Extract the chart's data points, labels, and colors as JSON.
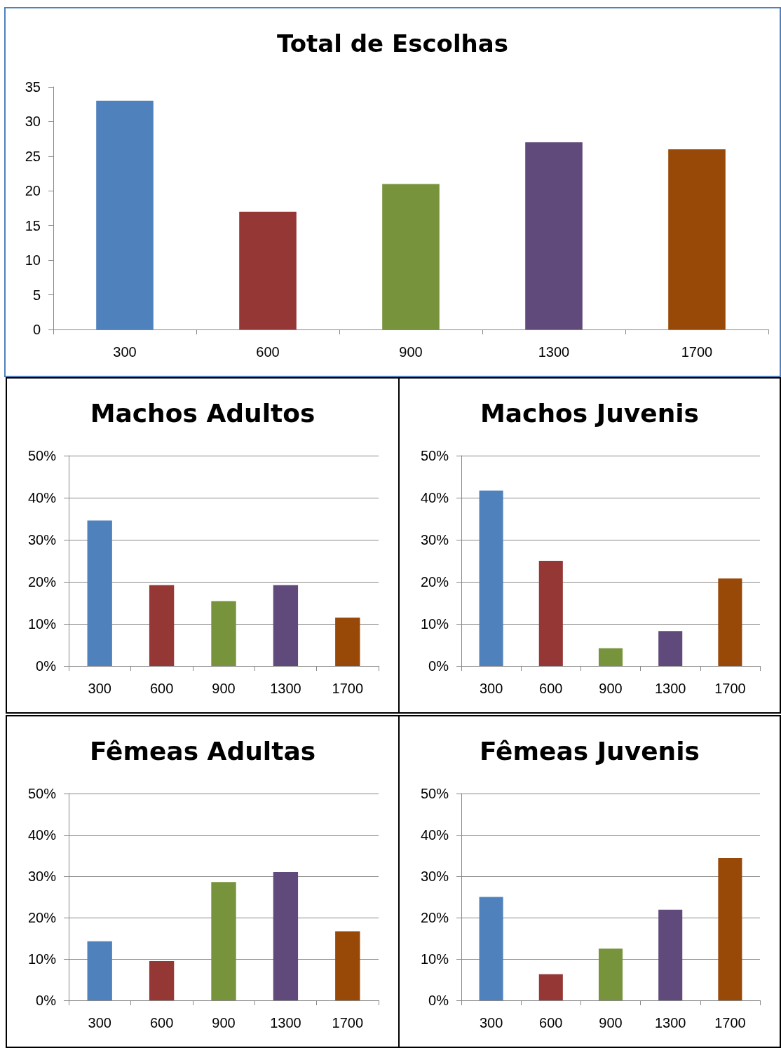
{
  "chart_data": [
    {
      "type": "bar",
      "title": "Total de Escolhas",
      "categories": [
        "300",
        "600",
        "900",
        "1300",
        "1700"
      ],
      "values": [
        33,
        17,
        21,
        27,
        26
      ],
      "colors": [
        "#4f81bd",
        "#953735",
        "#77933c",
        "#604a7b",
        "#984807"
      ],
      "ylim": [
        0,
        35
      ],
      "yticks": [
        0,
        5,
        10,
        15,
        20,
        25,
        30,
        35
      ],
      "grid": false
    },
    {
      "type": "bar",
      "title": "Machos Adultos",
      "categories": [
        "300",
        "600",
        "900",
        "1300",
        "1700"
      ],
      "values": [
        34.6,
        19.2,
        15.4,
        19.2,
        11.5
      ],
      "colors": [
        "#4f81bd",
        "#953735",
        "#77933c",
        "#604a7b",
        "#984807"
      ],
      "ylim": [
        0,
        50
      ],
      "yticks": [
        {
          "value": 0,
          "label": "0%"
        },
        {
          "value": 10,
          "label": "10%"
        },
        {
          "value": 20,
          "label": "20%"
        },
        {
          "value": 30,
          "label": "30%"
        },
        {
          "value": 40,
          "label": "40%"
        },
        {
          "value": 50,
          "label": "50%"
        }
      ],
      "grid": "y"
    },
    {
      "type": "bar",
      "title": "Machos Juvenis",
      "categories": [
        "300",
        "600",
        "900",
        "1300",
        "1700"
      ],
      "values": [
        41.7,
        25,
        4.2,
        8.3,
        20.8
      ],
      "colors": [
        "#4f81bd",
        "#953735",
        "#77933c",
        "#604a7b",
        "#984807"
      ],
      "ylim": [
        0,
        50
      ],
      "yticks": [
        {
          "value": 0,
          "label": "0%"
        },
        {
          "value": 10,
          "label": "10%"
        },
        {
          "value": 20,
          "label": "20%"
        },
        {
          "value": 30,
          "label": "30%"
        },
        {
          "value": 40,
          "label": "40%"
        },
        {
          "value": 50,
          "label": "50%"
        }
      ],
      "grid": "y"
    },
    {
      "type": "bar",
      "title": "Fêmeas Adultas",
      "categories": [
        "300",
        "600",
        "900",
        "1300",
        "1700"
      ],
      "values": [
        14.3,
        9.5,
        28.6,
        31,
        16.7
      ],
      "colors": [
        "#4f81bd",
        "#953735",
        "#77933c",
        "#604a7b",
        "#984807"
      ],
      "ylim": [
        0,
        50
      ],
      "yticks": [
        {
          "value": 0,
          "label": "0%"
        },
        {
          "value": 10,
          "label": "10%"
        },
        {
          "value": 20,
          "label": "20%"
        },
        {
          "value": 30,
          "label": "30%"
        },
        {
          "value": 40,
          "label": "40%"
        },
        {
          "value": 50,
          "label": "50%"
        }
      ],
      "grid": "y"
    },
    {
      "type": "bar",
      "title": "Fêmeas Juvenis",
      "categories": [
        "300",
        "600",
        "900",
        "1300",
        "1700"
      ],
      "values": [
        25,
        6.3,
        12.5,
        21.9,
        34.4
      ],
      "colors": [
        "#4f81bd",
        "#953735",
        "#77933c",
        "#604a7b",
        "#984807"
      ],
      "ylim": [
        0,
        50
      ],
      "yticks": [
        {
          "value": 0,
          "label": "0%"
        },
        {
          "value": 10,
          "label": "10%"
        },
        {
          "value": 20,
          "label": "20%"
        },
        {
          "value": 30,
          "label": "30%"
        },
        {
          "value": 40,
          "label": "40%"
        },
        {
          "value": 50,
          "label": "50%"
        }
      ],
      "grid": "y"
    }
  ]
}
